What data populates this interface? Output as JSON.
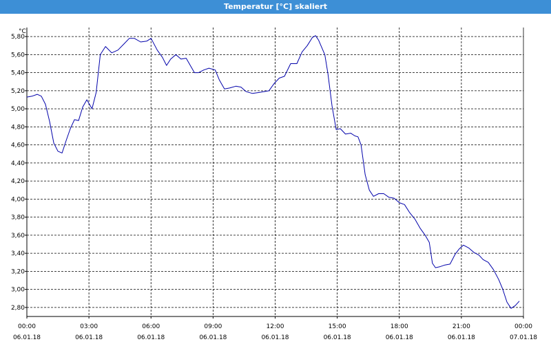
{
  "window": {
    "title": "Temperatur [°C] skaliert"
  },
  "chart_data": {
    "type": "line",
    "title": "Temperatur [°C] skaliert",
    "ylabel": "°C",
    "xlabel": "",
    "ylim": [
      2.7,
      5.9
    ],
    "y_ticks": [
      2.8,
      3.0,
      3.2,
      3.4,
      3.6,
      3.8,
      4.0,
      4.2,
      4.4,
      4.6,
      4.8,
      5.0,
      5.2,
      5.4,
      5.6,
      5.8
    ],
    "y_tick_labels": [
      "2,80",
      "3,00",
      "3,20",
      "3,40",
      "3,60",
      "3,80",
      "4,00",
      "4,20",
      "4,40",
      "4,60",
      "4,80",
      "5,00",
      "5,20",
      "5,40",
      "5,60",
      "5,80"
    ],
    "xlim_hours": [
      0,
      24
    ],
    "x_ticks": [
      {
        "h": 0,
        "time": "00:00",
        "date": "06.01.18"
      },
      {
        "h": 3,
        "time": "03:00",
        "date": "06.01.18"
      },
      {
        "h": 6,
        "time": "06:00",
        "date": "06.01.18"
      },
      {
        "h": 9,
        "time": "09:00",
        "date": "06.01.18"
      },
      {
        "h": 12,
        "time": "12:00",
        "date": "06.01.18"
      },
      {
        "h": 15,
        "time": "15:00",
        "date": "06.01.18"
      },
      {
        "h": 18,
        "time": "18:00",
        "date": "06.01.18"
      },
      {
        "h": 21,
        "time": "21:00",
        "date": "06.01.18"
      },
      {
        "h": 24,
        "time": "00:00",
        "date": "07.01.18"
      }
    ],
    "grid": true,
    "series": [
      {
        "color": "#0000aa",
        "x": [
          0,
          0.25,
          0.5,
          0.7,
          0.9,
          1.1,
          1.3,
          1.5,
          1.7,
          1.9,
          2.1,
          2.3,
          2.5,
          2.7,
          2.9,
          3.0,
          3.15,
          3.35,
          3.55,
          3.8,
          4.1,
          4.4,
          4.7,
          4.95,
          5.2,
          5.5,
          5.8,
          6.0,
          6.3,
          6.55,
          6.75,
          6.95,
          7.2,
          7.45,
          7.7,
          7.9,
          8.1,
          8.3,
          8.55,
          8.8,
          9.1,
          9.3,
          9.55,
          9.8,
          10.1,
          10.35,
          10.6,
          10.9,
          11.2,
          11.45,
          11.7,
          11.95,
          12.2,
          12.45,
          12.75,
          13.05,
          13.3,
          13.55,
          13.8,
          13.95,
          14.1,
          14.25,
          14.4,
          14.55,
          14.75,
          14.95,
          15.15,
          15.4,
          15.65,
          15.85,
          16.0,
          16.15,
          16.35,
          16.55,
          16.75,
          17.0,
          17.25,
          17.5,
          17.75,
          18.0,
          18.25,
          18.5,
          18.75,
          19.0,
          19.25,
          19.45,
          19.6,
          19.75,
          19.95,
          20.2,
          20.45,
          20.7,
          20.9,
          21.1,
          21.35,
          21.6,
          21.85,
          22.05,
          22.3,
          22.55,
          22.8,
          23.0,
          23.2,
          23.4,
          23.6,
          23.8
        ],
        "values": [
          5.13,
          5.14,
          5.16,
          5.14,
          5.05,
          4.86,
          4.62,
          4.53,
          4.51,
          4.65,
          4.78,
          4.88,
          4.87,
          5.02,
          5.1,
          5.06,
          5.0,
          5.18,
          5.6,
          5.69,
          5.62,
          5.65,
          5.72,
          5.78,
          5.78,
          5.74,
          5.75,
          5.78,
          5.65,
          5.57,
          5.48,
          5.55,
          5.6,
          5.55,
          5.56,
          5.48,
          5.4,
          5.4,
          5.43,
          5.45,
          5.43,
          5.32,
          5.22,
          5.23,
          5.25,
          5.24,
          5.19,
          5.17,
          5.18,
          5.19,
          5.2,
          5.28,
          5.34,
          5.36,
          5.5,
          5.5,
          5.63,
          5.7,
          5.79,
          5.81,
          5.76,
          5.68,
          5.6,
          5.39,
          5.03,
          4.77,
          4.78,
          4.72,
          4.73,
          4.7,
          4.69,
          4.6,
          4.27,
          4.1,
          4.03,
          4.06,
          4.06,
          4.02,
          4.01,
          3.96,
          3.94,
          3.85,
          3.78,
          3.68,
          3.6,
          3.52,
          3.29,
          3.24,
          3.25,
          3.27,
          3.28,
          3.39,
          3.45,
          3.49,
          3.46,
          3.41,
          3.38,
          3.33,
          3.3,
          3.22,
          3.11,
          3.0,
          2.86,
          2.79,
          2.82,
          2.87
        ]
      }
    ]
  }
}
